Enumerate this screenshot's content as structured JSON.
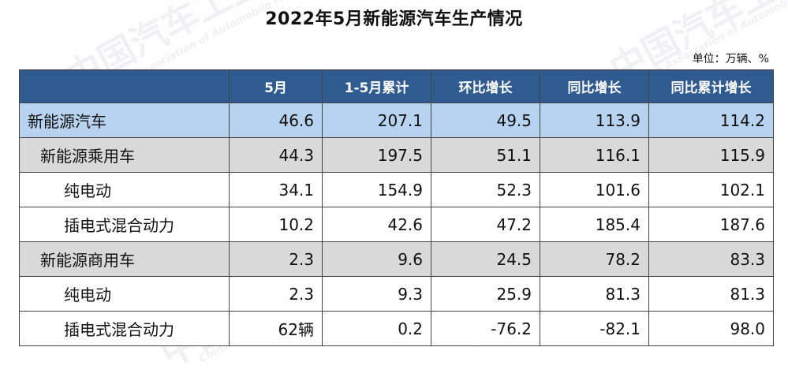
{
  "title": "2022年5月新能源汽车生产情况",
  "unit": "单位：万辆、%",
  "watermark": {
    "cn": "中国汽车工业协会",
    "en": "China Association of Automobile Manufacturers"
  },
  "columns": [
    "",
    "5月",
    "1-5月累计",
    "环比增长",
    "同比增长",
    "同比累计增长"
  ],
  "rows": [
    {
      "label": "新能源汽车",
      "level": 0,
      "values": [
        "46.6",
        "207.1",
        "49.5",
        "113.9",
        "114.2"
      ]
    },
    {
      "label": "新能源乘用车",
      "level": 1,
      "values": [
        "44.3",
        "197.5",
        "51.1",
        "116.1",
        "115.9"
      ]
    },
    {
      "label": "纯电动",
      "level": 2,
      "values": [
        "34.1",
        "154.9",
        "52.3",
        "101.6",
        "102.1"
      ]
    },
    {
      "label": "插电式混合动力",
      "level": 2,
      "values": [
        "10.2",
        "42.6",
        "47.2",
        "185.4",
        "187.6"
      ]
    },
    {
      "label": "新能源商用车",
      "level": 1,
      "values": [
        "2.3",
        "9.6",
        "24.5",
        "78.2",
        "83.3"
      ]
    },
    {
      "label": "纯电动",
      "level": 2,
      "values": [
        "2.3",
        "9.3",
        "25.9",
        "81.3",
        "81.3"
      ]
    },
    {
      "label": "插电式混合动力",
      "level": 2,
      "values": [
        "62辆",
        "0.2",
        "-76.2",
        "-82.1",
        "98.0"
      ]
    }
  ],
  "colors": {
    "header_bg": "#305b91",
    "top_row_bg": "#b8d3ef",
    "category_row_bg": "#d9d9d9"
  }
}
